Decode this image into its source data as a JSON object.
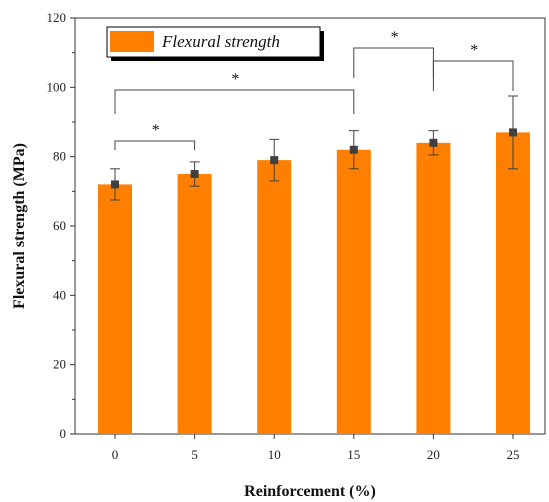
{
  "chart_data": {
    "type": "bar",
    "categories": [
      "0",
      "5",
      "10",
      "15",
      "20",
      "25"
    ],
    "series": [
      {
        "name": "Flexural strength",
        "values": [
          72,
          75,
          79,
          82,
          84,
          87
        ],
        "error": [
          4.5,
          3.5,
          6.0,
          5.5,
          3.5,
          10.5
        ],
        "color": "#FF7F00"
      }
    ],
    "xlabel": "Reinforcement (%)",
    "ylabel": "Flexural strength (MPa)",
    "ylim": [
      0,
      120
    ],
    "yticks": [
      0,
      20,
      40,
      60,
      80,
      100,
      120
    ],
    "grid": false,
    "legend_position": "top-left",
    "marker_color": "#404040",
    "significance": [
      {
        "from": "0",
        "to": "5",
        "label": "*"
      },
      {
        "from": "0",
        "to": "15",
        "label": "*"
      },
      {
        "from": "15",
        "to": "20",
        "label": "*"
      },
      {
        "from": "20",
        "to": "25",
        "label": "*"
      }
    ]
  }
}
